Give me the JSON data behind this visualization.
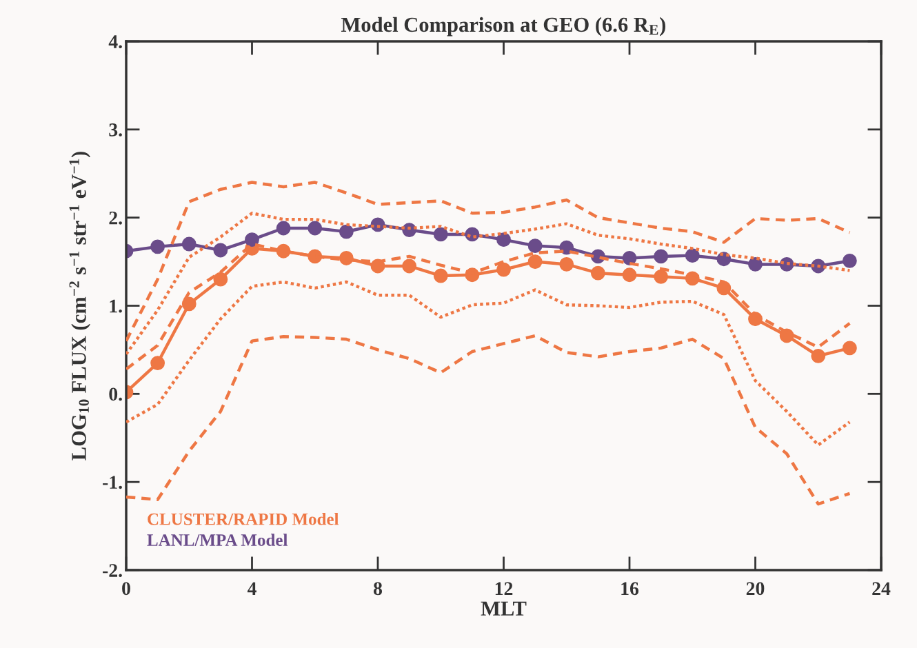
{
  "chart_data": {
    "type": "line",
    "title": "Model Comparison at GEO (6.6 R$_{E}$)",
    "xlabel": "MLT",
    "ylabel": "LOG$_{10}$ FLUX (cm$^{−2}$ s$^{−1}$ str$^{−1}$ eV$^{−1}$)",
    "x": [
      0,
      1,
      2,
      3,
      4,
      5,
      6,
      7,
      8,
      9,
      10,
      11,
      12,
      13,
      14,
      15,
      16,
      17,
      18,
      19,
      20,
      21,
      22,
      23
    ],
    "xlim": [
      0,
      24
    ],
    "xticks": [
      0,
      4,
      8,
      12,
      16,
      20,
      24
    ],
    "ylim": [
      -2,
      4
    ],
    "yticks": [
      {
        "value": -2,
        "label": "-2."
      },
      {
        "value": -1,
        "label": "-1."
      },
      {
        "value": 0,
        "label": "0."
      },
      {
        "value": 1,
        "label": "1."
      },
      {
        "value": 2,
        "label": "2."
      },
      {
        "value": 3,
        "label": "3."
      },
      {
        "value": 4,
        "label": "4."
      }
    ],
    "legend": "bottom left",
    "grid": false,
    "series": [
      {
        "color": "#ee7744",
        "line_style": "dashed",
        "marker": "none",
        "values": [
          0.6,
          1.3,
          2.18,
          2.32,
          2.4,
          2.35,
          2.4,
          2.28,
          2.15,
          2.17,
          2.19,
          2.05,
          2.06,
          2.12,
          2.2,
          2.0,
          1.94,
          1.88,
          1.84,
          1.72,
          1.99,
          1.97,
          1.99,
          1.83
        ]
      },
      {
        "color": "#ee7744",
        "line_style": "dashed",
        "marker": "none",
        "values": [
          -1.17,
          -1.2,
          -0.65,
          -0.2,
          0.6,
          0.65,
          0.64,
          0.62,
          0.5,
          0.4,
          0.24,
          0.48,
          0.57,
          0.66,
          0.47,
          0.42,
          0.48,
          0.52,
          0.62,
          0.4,
          -0.38,
          -0.68,
          -1.25,
          -1.13
        ]
      },
      {
        "color": "#ee7744",
        "line_style": "dotted",
        "marker": "none",
        "values": [
          0.45,
          0.95,
          1.55,
          1.78,
          2.05,
          1.98,
          1.98,
          1.92,
          1.9,
          1.88,
          1.9,
          1.78,
          1.82,
          1.87,
          1.93,
          1.8,
          1.76,
          1.7,
          1.65,
          1.58,
          1.54,
          1.48,
          1.45,
          1.4
        ]
      },
      {
        "color": "#ee7744",
        "line_style": "dotted",
        "marker": "none",
        "values": [
          -0.32,
          -0.12,
          0.38,
          0.85,
          1.22,
          1.27,
          1.2,
          1.27,
          1.12,
          1.12,
          0.87,
          1.01,
          1.03,
          1.18,
          1.01,
          1.0,
          0.98,
          1.04,
          1.05,
          0.9,
          0.15,
          -0.2,
          -0.58,
          -0.32
        ]
      },
      {
        "color": "#ee7744",
        "line_style": "dashed",
        "marker": "none",
        "values": [
          0.28,
          0.55,
          1.15,
          1.38,
          1.7,
          1.62,
          1.56,
          1.52,
          1.5,
          1.56,
          1.46,
          1.37,
          1.5,
          1.6,
          1.62,
          1.55,
          1.48,
          1.42,
          1.35,
          1.27,
          0.9,
          0.7,
          0.53,
          0.8
        ]
      },
      {
        "name": "CLUSTER/RAPID Model",
        "color": "#ee7744",
        "line_style": "solid",
        "marker": "circle",
        "values": [
          0.02,
          0.35,
          1.02,
          1.3,
          1.65,
          1.62,
          1.56,
          1.54,
          1.45,
          1.45,
          1.34,
          1.35,
          1.41,
          1.5,
          1.47,
          1.37,
          1.35,
          1.33,
          1.31,
          1.2,
          0.85,
          0.66,
          0.43,
          0.52
        ]
      },
      {
        "name": "LANL/MPA Model",
        "color": "#6a4c8a",
        "line_style": "solid",
        "marker": "circle",
        "values": [
          1.62,
          1.67,
          1.7,
          1.63,
          1.75,
          1.88,
          1.88,
          1.84,
          1.92,
          1.86,
          1.81,
          1.81,
          1.75,
          1.68,
          1.66,
          1.56,
          1.54,
          1.56,
          1.57,
          1.53,
          1.47,
          1.47,
          1.45,
          1.51
        ]
      }
    ]
  }
}
